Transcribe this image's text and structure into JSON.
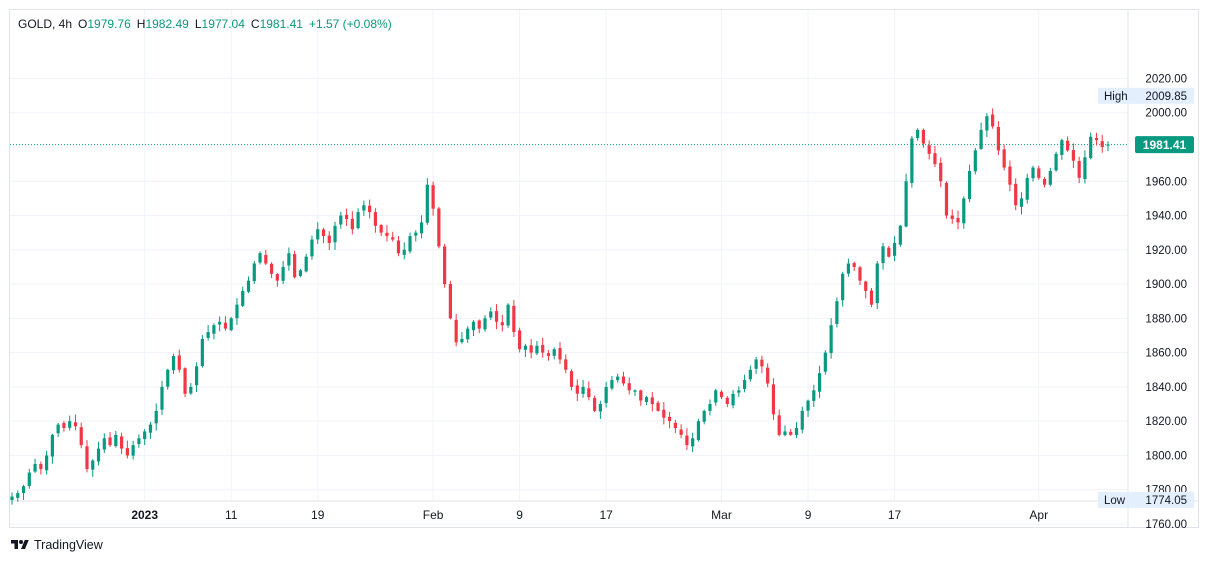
{
  "legend": {
    "symbol": "GOLD, 4h",
    "open_label": "O",
    "open": "1979.76",
    "high_label": "H",
    "high": "1982.49",
    "low_label": "L",
    "low": "1977.04",
    "close_label": "C",
    "close": "1981.41",
    "change": "+1.57 (+0.08%)"
  },
  "footer": {
    "brand": "TradingView",
    "logo_icon": "tradingview-logo-icon"
  },
  "colors": {
    "up": "#089981",
    "down": "#f23645",
    "grid": "#f0f3fa",
    "price_line": "#089981"
  },
  "chart_data": {
    "type": "candlestick",
    "interval": "4h",
    "ylim": [
      1750,
      2028
    ],
    "y_ticks": [
      1760,
      1780,
      1800,
      1820,
      1840,
      1860,
      1880,
      1900,
      1920,
      1940,
      1960,
      1980,
      2000,
      2020
    ],
    "y_tick_labels": [
      "1760.00",
      "1780.00",
      "1800.00",
      "1820.00",
      "1840.00",
      "1860.00",
      "1880.00",
      "1900.00",
      "1920.00",
      "1940.00",
      "1960.00",
      "1980.00",
      "2000.00",
      "2020.00"
    ],
    "x_ticks": [
      {
        "label": "2023",
        "bold": true,
        "index": 23
      },
      {
        "label": "11",
        "bold": false,
        "index": 38
      },
      {
        "label": "19",
        "bold": false,
        "index": 53
      },
      {
        "label": "Feb",
        "bold": false,
        "index": 73
      },
      {
        "label": "9",
        "bold": false,
        "index": 88
      },
      {
        "label": "17",
        "bold": false,
        "index": 103
      },
      {
        "label": "Mar",
        "bold": false,
        "index": 123
      },
      {
        "label": "9",
        "bold": false,
        "index": 138
      },
      {
        "label": "17",
        "bold": false,
        "index": 153
      },
      {
        "label": "Apr",
        "bold": false,
        "index": 178
      }
    ],
    "high_marker": {
      "label": "High",
      "value": 2009.85,
      "value_text": "2009.85"
    },
    "low_marker": {
      "label": "Low",
      "value": 1774.05,
      "value_text": "1774.05"
    },
    "last_price": {
      "value": 1981.41,
      "value_text": "1981.41"
    },
    "close_path": [
      1776,
      1778,
      1782,
      1790,
      1795,
      1792,
      1800,
      1812,
      1818,
      1816,
      1820,
      1817,
      1806,
      1792,
      1797,
      1804,
      1810,
      1806,
      1812,
      1804,
      1800,
      1806,
      1810,
      1814,
      1818,
      1826,
      1840,
      1850,
      1858,
      1850,
      1836,
      1840,
      1852,
      1868,
      1872,
      1876,
      1878,
      1874,
      1880,
      1888,
      1896,
      1902,
      1912,
      1918,
      1912,
      1906,
      1902,
      1910,
      1918,
      1904,
      1908,
      1916,
      1926,
      1932,
      1928,
      1924,
      1934,
      1940,
      1938,
      1932,
      1942,
      1946,
      1942,
      1934,
      1930,
      1928,
      1926,
      1918,
      1920,
      1928,
      1930,
      1936,
      1958,
      1944,
      1922,
      1900,
      1880,
      1866,
      1868,
      1874,
      1878,
      1874,
      1880,
      1884,
      1878,
      1876,
      1888,
      1872,
      1862,
      1864,
      1860,
      1864,
      1860,
      1858,
      1862,
      1856,
      1850,
      1840,
      1836,
      1840,
      1834,
      1826,
      1830,
      1840,
      1844,
      1846,
      1842,
      1838,
      1838,
      1832,
      1834,
      1830,
      1826,
      1822,
      1820,
      1816,
      1812,
      1806,
      1810,
      1820,
      1826,
      1830,
      1838,
      1834,
      1830,
      1836,
      1838,
      1844,
      1850,
      1856,
      1852,
      1842,
      1824,
      1812,
      1814,
      1812,
      1816,
      1826,
      1832,
      1838,
      1848,
      1860,
      1876,
      1890,
      1906,
      1912,
      1910,
      1902,
      1896,
      1888,
      1912,
      1922,
      1916,
      1924,
      1934,
      1960,
      1985,
      1990,
      1982,
      1976,
      1970,
      1960,
      1940,
      1938,
      1936,
      1950,
      1966,
      1978,
      1990,
      1998,
      1992,
      1978,
      1968,
      1958,
      1946,
      1950,
      1962,
      1968,
      1962,
      1958,
      1966,
      1976,
      1984,
      1978,
      1972,
      1962,
      1974,
      1986,
      1984,
      1980,
      1981.41
    ]
  }
}
